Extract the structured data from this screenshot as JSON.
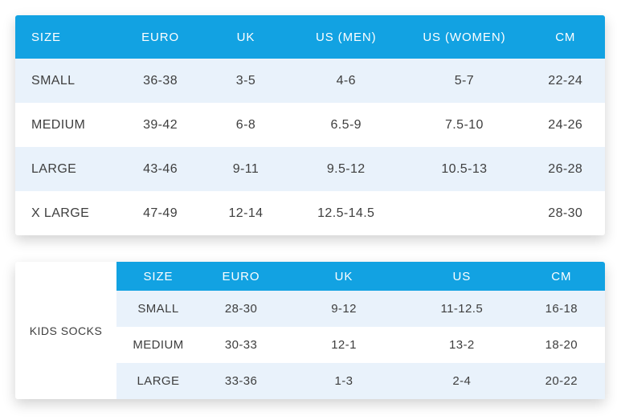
{
  "colors": {
    "header_bg": "#12A2E2",
    "alt_row_bg": "#E9F2FB",
    "row_bg": "#FFFFFF",
    "header_text": "#FFFFFF",
    "cell_text": "#3E3E3E"
  },
  "adult_table": {
    "columns": [
      "SIZE",
      "EURO",
      "UK",
      "US (MEN)",
      "US (WOMEN)",
      "CM"
    ],
    "rows": [
      [
        "SMALL",
        "36-38",
        "3-5",
        "4-6",
        "5-7",
        "22-24"
      ],
      [
        "MEDIUM",
        "39-42",
        "6-8",
        "6.5-9",
        "7.5-10",
        "24-26"
      ],
      [
        "LARGE",
        "43-46",
        "9-11",
        "9.5-12",
        "10.5-13",
        "26-28"
      ],
      [
        "X LARGE",
        "47-49",
        "12-14",
        "12.5-14.5",
        "",
        "28-30"
      ]
    ]
  },
  "kids_table": {
    "label": "KIDS SOCKS",
    "columns": [
      "SIZE",
      "EURO",
      "UK",
      "US",
      "CM"
    ],
    "rows": [
      [
        "SMALL",
        "28-30",
        "9-12",
        "11-12.5",
        "16-18"
      ],
      [
        "MEDIUM",
        "30-33",
        "12-1",
        "13-2",
        "18-20"
      ],
      [
        "LARGE",
        "33-36",
        "1-3",
        "2-4",
        "20-22"
      ]
    ]
  }
}
